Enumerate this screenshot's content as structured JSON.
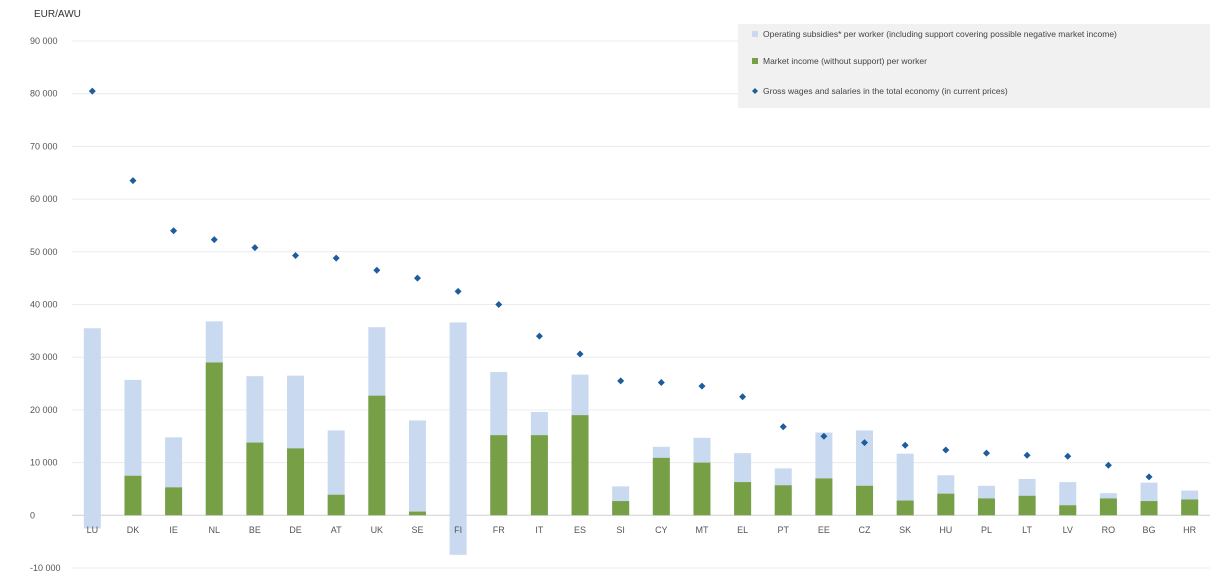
{
  "chart_data": {
    "type": "bar",
    "title": "",
    "ylabel": "EUR/AWU",
    "xlabel": "",
    "ylim": [
      -10000,
      90000
    ],
    "yticks": [
      -10000,
      0,
      10000,
      20000,
      30000,
      40000,
      50000,
      60000,
      70000,
      80000,
      90000
    ],
    "ytick_labels": [
      "-10 000",
      "0",
      "10 000",
      "20 000",
      "30 000",
      "40 000",
      "50 000",
      "60 000",
      "70 000",
      "80 000",
      "90 000"
    ],
    "grid": true,
    "legend_position": "top-right",
    "categories": [
      "LU",
      "DK",
      "IE",
      "NL",
      "BE",
      "DE",
      "AT",
      "UK",
      "SE",
      "FI",
      "FR",
      "IT",
      "ES",
      "SI",
      "CY",
      "MT",
      "EL",
      "PT",
      "EE",
      "CZ",
      "SK",
      "HU",
      "PL",
      "LT",
      "LV",
      "RO",
      "BG",
      "HR"
    ],
    "series": [
      {
        "name": "Market income (without support) per worker",
        "kind": "bar",
        "color": "#77a046",
        "values": [
          -2500,
          7500,
          5300,
          29000,
          13800,
          12700,
          3900,
          22700,
          700,
          -7500,
          15200,
          15200,
          19000,
          2700,
          10900,
          10000,
          6300,
          5700,
          7000,
          5600,
          2800,
          4100,
          3200,
          3700,
          1900,
          3200,
          2700,
          3000
        ]
      },
      {
        "name": "Operating subsidies* per worker (including support covering possible negative market income)",
        "kind": "bar",
        "color": "#c9daf0",
        "values": [
          35500,
          25700,
          14800,
          36800,
          26400,
          26500,
          16100,
          35700,
          18000,
          36600,
          27200,
          19600,
          26700,
          5500,
          13000,
          14700,
          11800,
          8900,
          15700,
          16100,
          11700,
          7600,
          5600,
          6900,
          6300,
          4200,
          6200,
          4700
        ]
      },
      {
        "name": "Gross wages and salaries in the total economy (in current prices)",
        "kind": "marker",
        "color": "#1f5c9e",
        "values": [
          80500,
          63500,
          54000,
          52300,
          50800,
          49300,
          48800,
          46500,
          45000,
          42500,
          40000,
          34000,
          30600,
          25500,
          25200,
          24500,
          22500,
          16800,
          15000,
          13800,
          13300,
          12400,
          11800,
          11400,
          11200,
          9500,
          7300,
          null
        ]
      }
    ]
  }
}
